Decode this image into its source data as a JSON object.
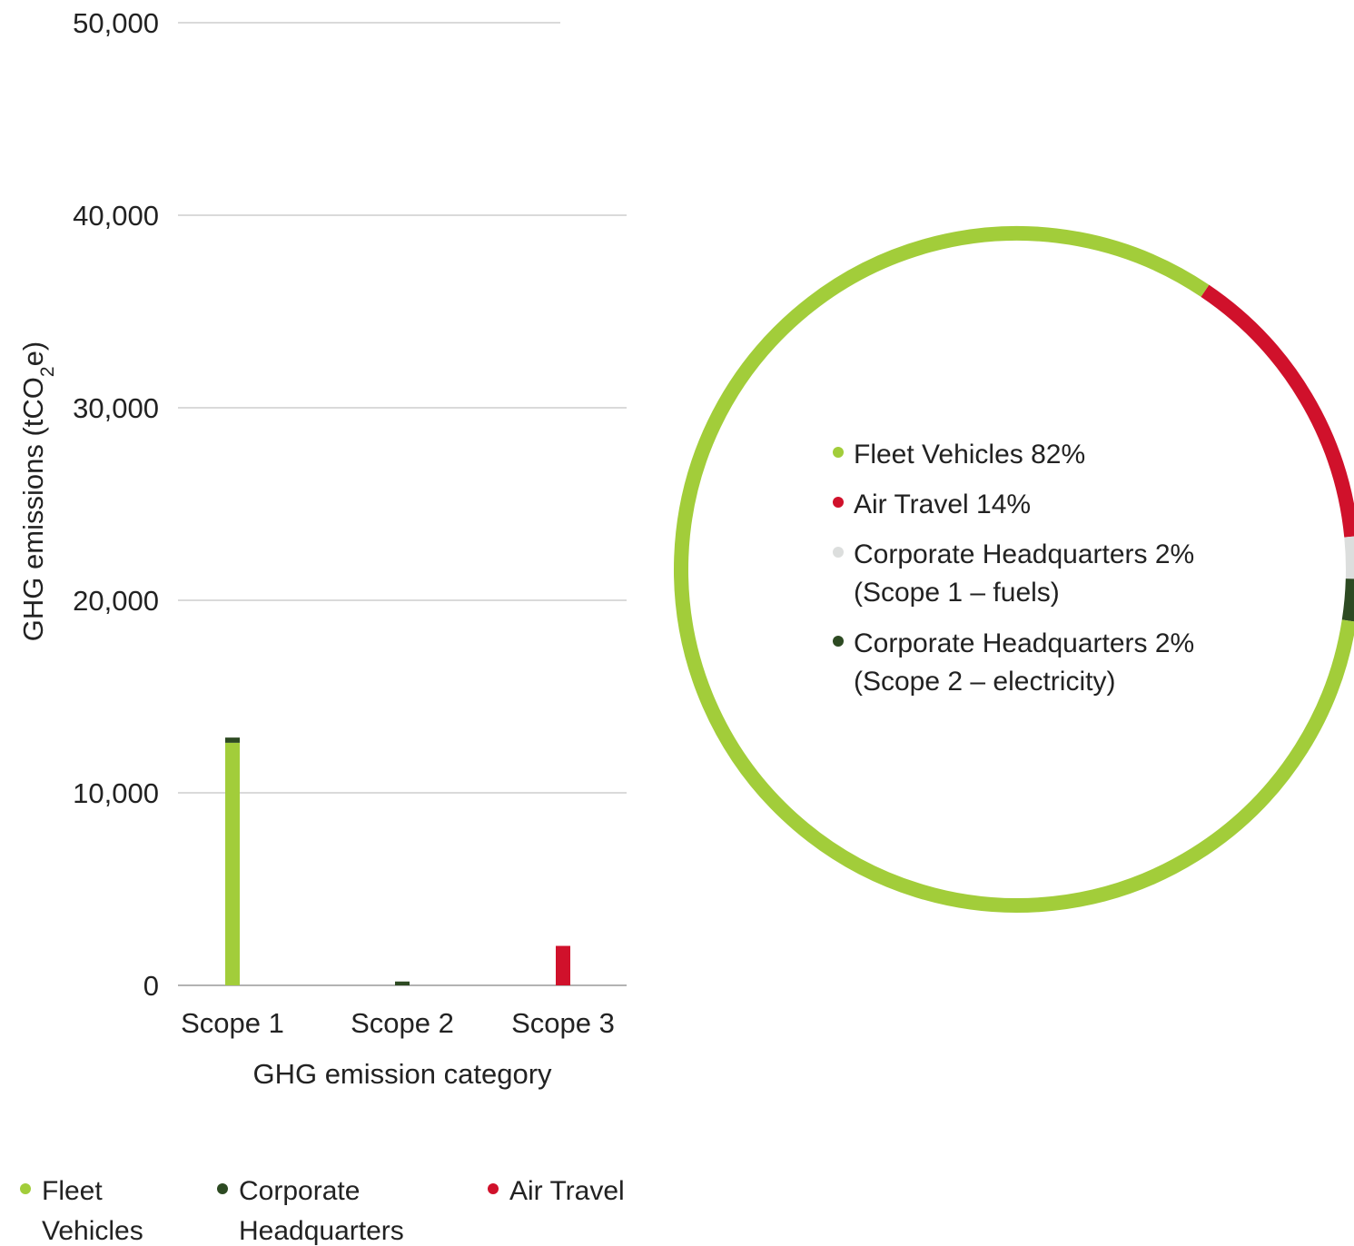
{
  "chart_data": [
    {
      "type": "bar",
      "stacked": true,
      "categories": [
        "Scope 1",
        "Scope 2",
        "Scope 3"
      ],
      "series": [
        {
          "name": "Fleet Vehicles",
          "color": "#a2cd3a",
          "values": [
            12600,
            0,
            0
          ]
        },
        {
          "name": "Corporate Headquarters",
          "color": "#2d4a22",
          "values": [
            270,
            200,
            0
          ]
        },
        {
          "name": "Air Travel",
          "color": "#d0112b",
          "values": [
            0,
            0,
            2050
          ]
        }
      ],
      "ylim": [
        0,
        50000
      ],
      "yticks": [
        0,
        10000,
        20000,
        30000,
        40000,
        50000
      ],
      "ytick_labels": [
        "0",
        "10,000",
        "20,000",
        "30,000",
        "40,000",
        "50,000"
      ],
      "ylabel_main": "GHG emissions (tCO",
      "ylabel_sub": "2",
      "ylabel_end": "e)",
      "xlabel": "GHG emission category",
      "grid": true,
      "legend": [
        {
          "label_lines": [
            "Fleet",
            "Vehicles"
          ],
          "color": "#a2cd3a"
        },
        {
          "label_lines": [
            "Corporate",
            "Headquarters"
          ],
          "color": "#2d4a22"
        },
        {
          "label_lines": [
            "Air Travel"
          ],
          "color": "#d0112b"
        }
      ],
      "legend_position": "bottom"
    },
    {
      "type": "pie",
      "donut": true,
      "slices": [
        {
          "label_lines": [
            "Fleet Vehicles 82%"
          ],
          "value": 82,
          "color": "#a2cd3a"
        },
        {
          "label_lines": [
            "Air Travel 14%"
          ],
          "value": 14,
          "color": "#d0112b"
        },
        {
          "label_lines": [
            "Corporate Headquarters 2%",
            "(Scope 1 – fuels)"
          ],
          "value": 2,
          "color": "#dcdedd"
        },
        {
          "label_lines": [
            "Corporate Headquarters 2%",
            "(Scope 2 – electricity)"
          ],
          "value": 2,
          "color": "#2d4a22"
        }
      ],
      "legend_position": "center"
    }
  ]
}
